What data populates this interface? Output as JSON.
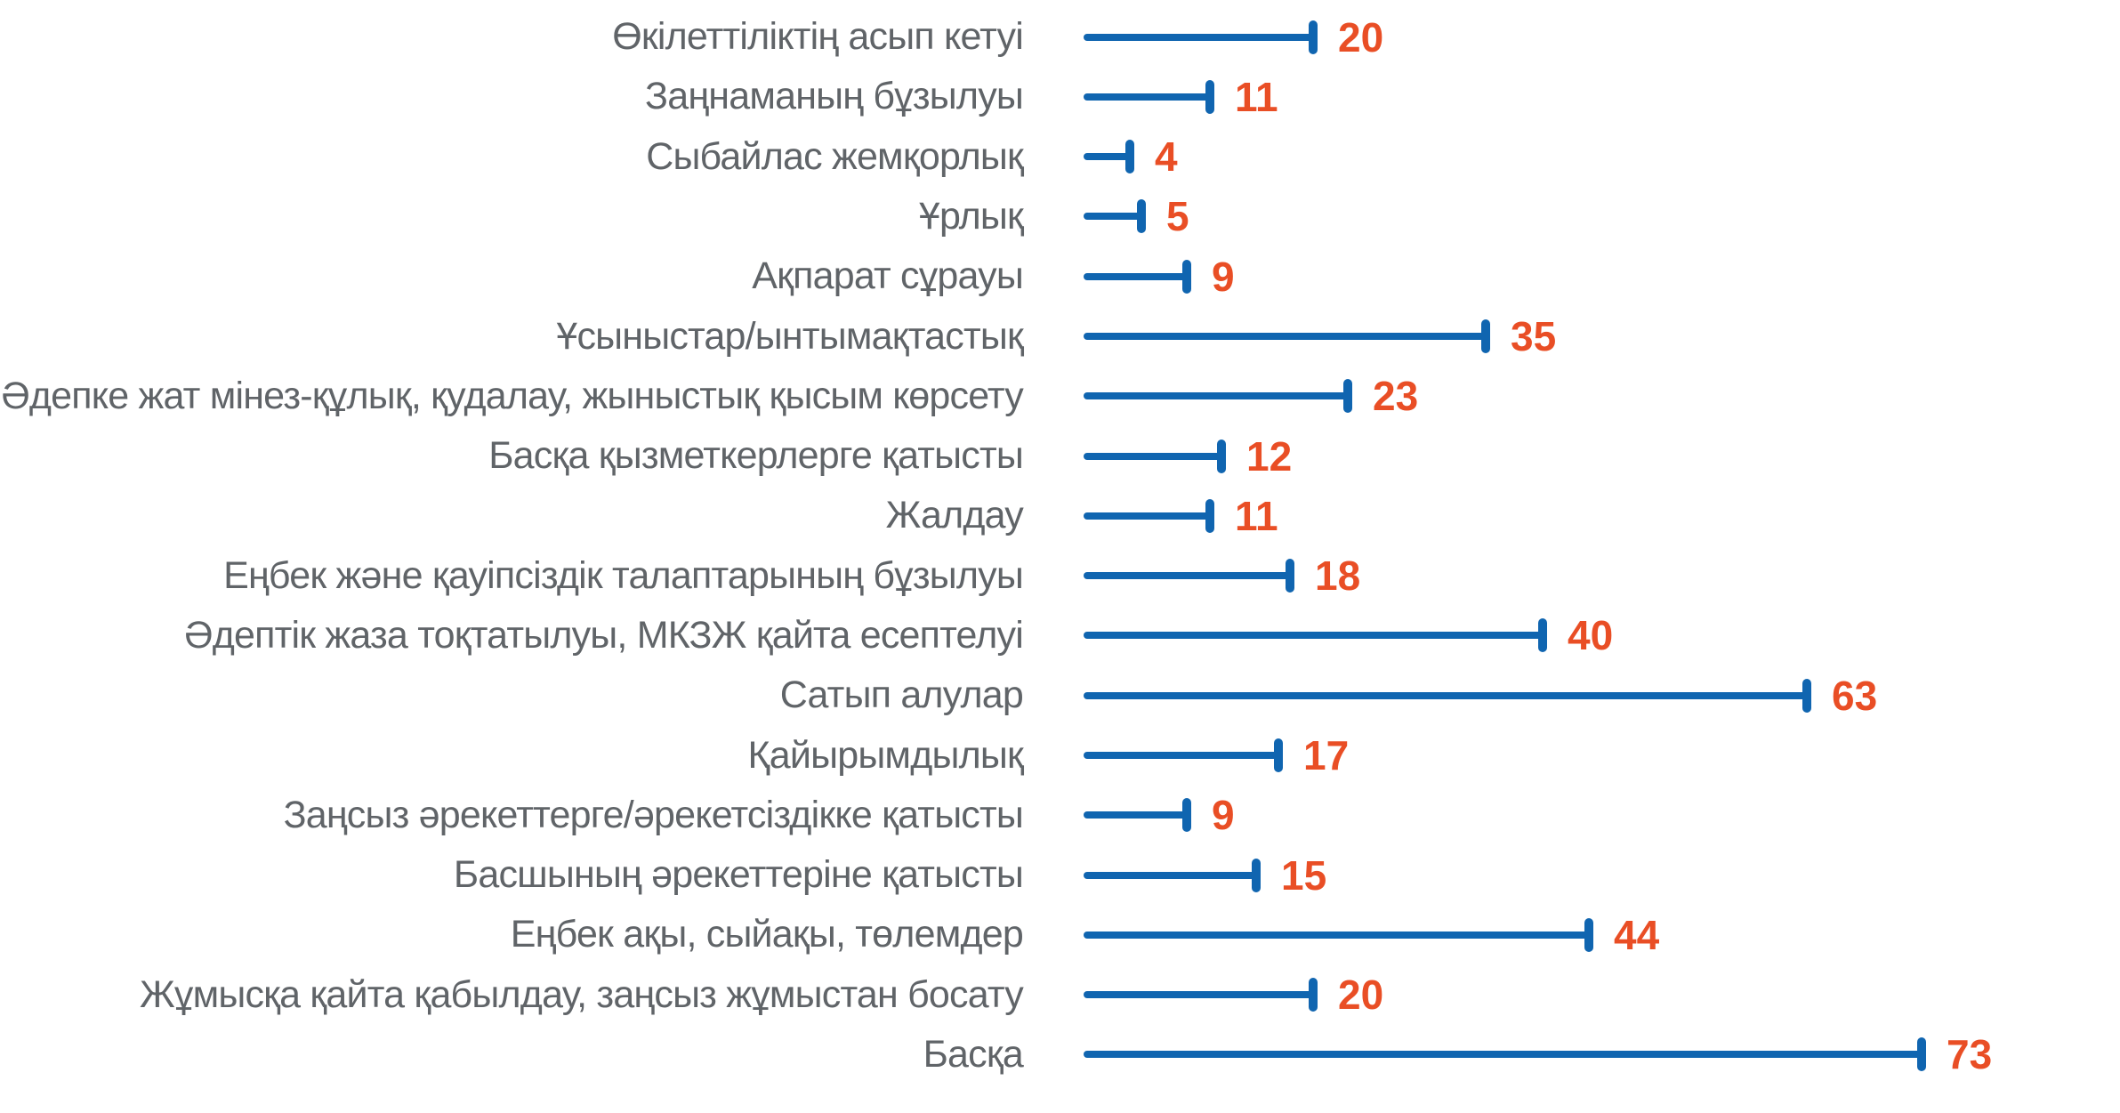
{
  "chart_data": {
    "type": "bar",
    "variant": "horizontal-lollipop-with-end-tick",
    "title": "",
    "xlabel": "",
    "ylabel": "",
    "xlim": [
      0,
      78
    ],
    "grid": false,
    "legend": null,
    "axis_labels_visible": false,
    "value_labels_visible": true,
    "colors": {
      "bar": "#1065b0",
      "value_label": "#e94e25",
      "category_label": "#606468",
      "background": "#ffffff"
    },
    "categories": [
      "Өкілеттіліктің асып кетуі",
      "Заңнаманың бұзылуы",
      "Сыбайлас жемқорлық",
      "Ұрлық",
      "Ақпарат сұрауы",
      "Ұсыныстар/ынтымақтастық",
      "Әдепке жат мінез-құлық, қудалау, жыныстық қысым көрсету",
      "Басқа қызметкерлерге қатысты",
      "Жалдау",
      "Еңбек және қауіпсіздік талаптарының бұзылуы",
      "Әдептік жаза тоқтатылуы, МКЗЖ қайта есептелуі",
      "Сатып алулар",
      "Қайырымдылық",
      "Заңсыз әрекеттерге/әрекетсіздікке қатысты",
      "Басшының әрекеттеріне қатысты",
      "Еңбек ақы, сыйақы, төлемдер",
      "Жұмысқа қайта қабылдау, заңсыз жұмыстан босату",
      "Басқа"
    ],
    "values": [
      20,
      11,
      4,
      5,
      9,
      35,
      23,
      12,
      11,
      18,
      40,
      63,
      17,
      9,
      15,
      44,
      20,
      73
    ]
  }
}
